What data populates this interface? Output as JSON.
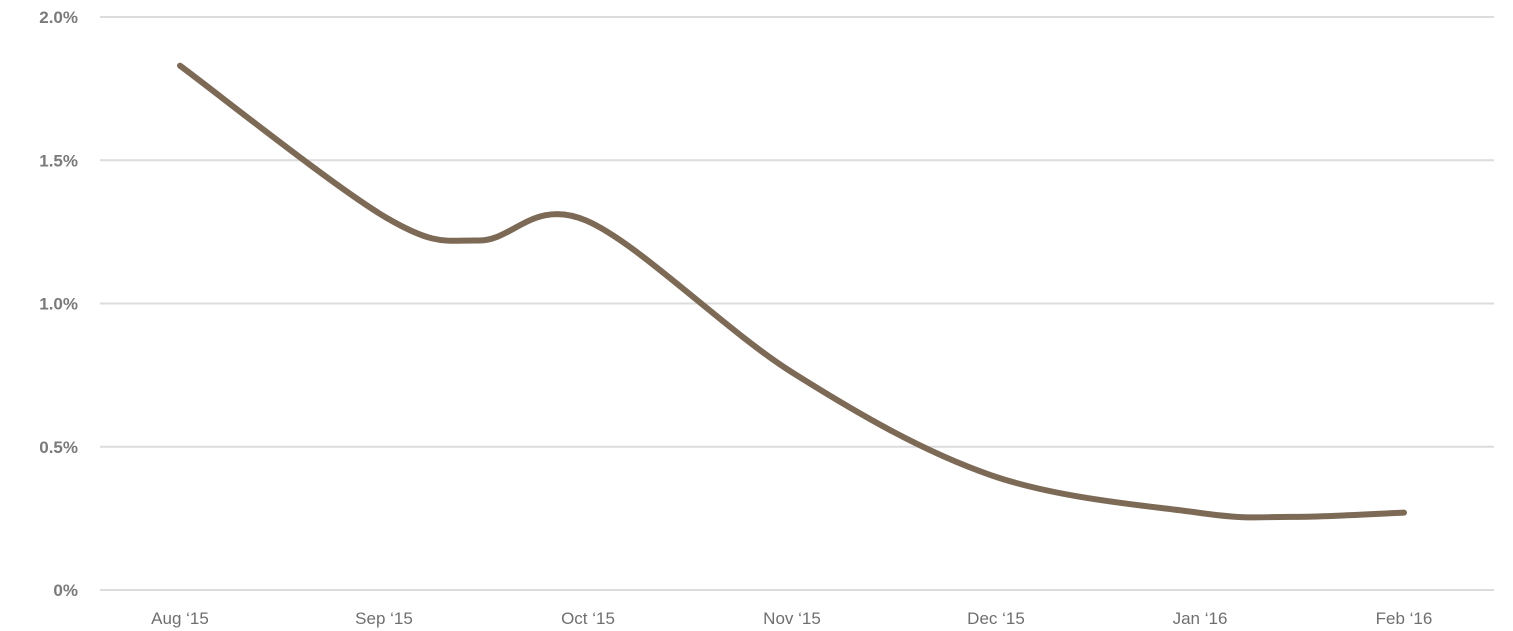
{
  "chart_data": {
    "type": "line",
    "title": "",
    "xlabel": "",
    "ylabel": "",
    "categories": [
      "Aug ‘15",
      "Sep ‘15",
      "Oct ‘15",
      "Nov ‘15",
      "Dec ‘15",
      "Jan ‘16",
      "Feb ‘16"
    ],
    "y_ticks": [
      {
        "value": 0,
        "label": "0%"
      },
      {
        "value": 0.5,
        "label": "0.5%"
      },
      {
        "value": 1.0,
        "label": "1.0%"
      },
      {
        "value": 1.5,
        "label": "1.5%"
      },
      {
        "value": 2.0,
        "label": "2.0%"
      }
    ],
    "ylim": [
      0,
      2.0
    ],
    "grid": true,
    "series": [
      {
        "color": "#7d6a56",
        "points": [
          {
            "x": "2015-08-01",
            "y": 1.83
          },
          {
            "x": "2015-09-01",
            "y": 1.3
          },
          {
            "x": "2015-09-15",
            "y": 1.22
          },
          {
            "x": "2015-10-01",
            "y": 1.29
          },
          {
            "x": "2015-11-01",
            "y": 0.76
          },
          {
            "x": "2015-12-01",
            "y": 0.4
          },
          {
            "x": "2016-01-01",
            "y": 0.27
          },
          {
            "x": "2016-01-15",
            "y": 0.255
          },
          {
            "x": "2016-02-01",
            "y": 0.27
          }
        ]
      }
    ]
  }
}
